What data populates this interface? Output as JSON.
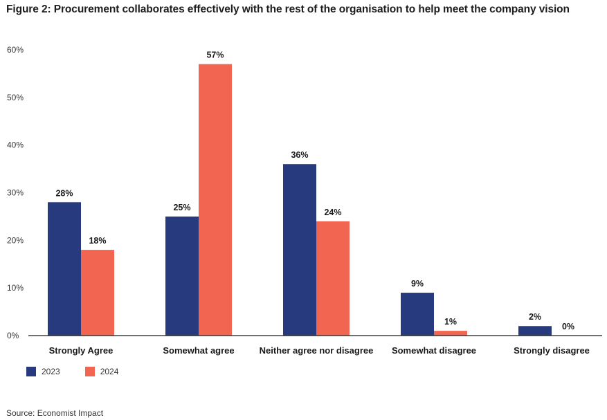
{
  "chart_data": {
    "type": "bar",
    "title": "Figure 2: Procurement collaborates effectively with the rest of the organisation to help meet the company vision",
    "xlabel": "",
    "ylabel": "",
    "categories": [
      "Strongly Agree",
      "Somewhat agree",
      "Neither agree nor disagree",
      "Somewhat disagree",
      "Strongly disagree"
    ],
    "series": [
      {
        "name": "2023",
        "color": "#283a7e",
        "values": [
          28,
          25,
          36,
          9,
          2
        ],
        "labels": [
          "28%",
          "25%",
          "36%",
          "9%",
          "2%"
        ]
      },
      {
        "name": "2024",
        "color": "#f26651",
        "values": [
          18,
          57,
          24,
          1,
          0
        ],
        "labels": [
          "18%",
          "57%",
          "24%",
          "1%",
          "0%"
        ]
      }
    ],
    "ylim": [
      0,
      60
    ],
    "yticks": [
      0,
      10,
      20,
      30,
      40,
      50,
      60
    ],
    "ytick_labels": [
      "0%",
      "10%",
      "20%",
      "30%",
      "40%",
      "50%",
      "60%"
    ],
    "grid": false,
    "legend_position": "bottom-left",
    "source": "Source: Economist Impact"
  }
}
